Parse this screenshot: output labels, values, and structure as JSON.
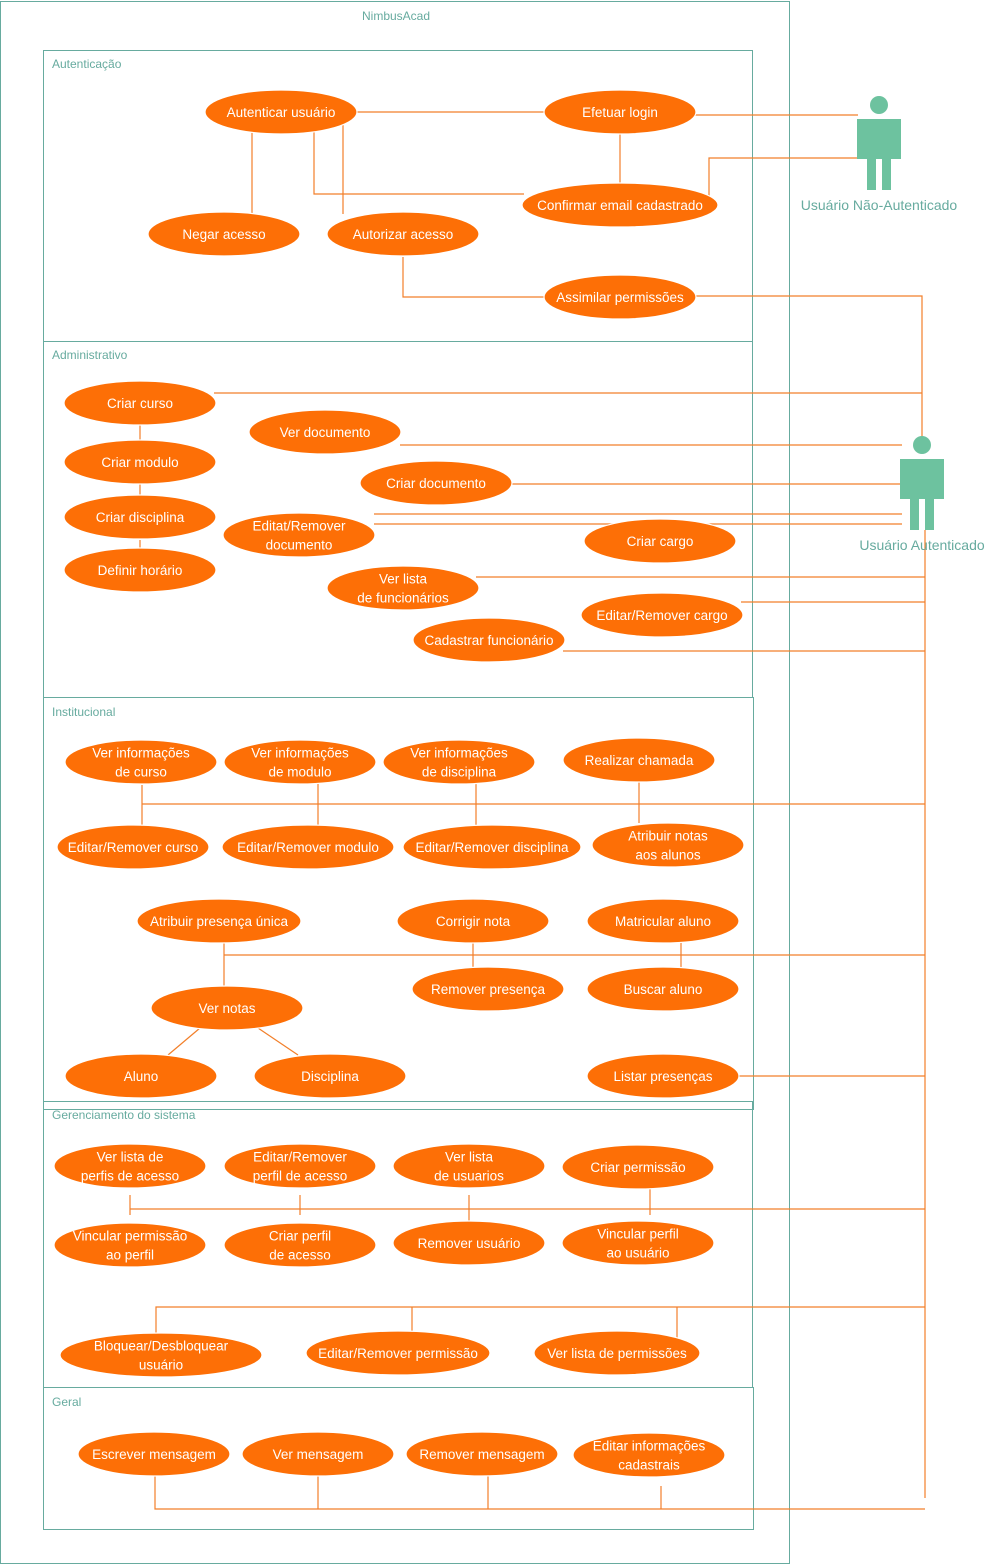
{
  "system": {
    "title": "NimbusAcad"
  },
  "colors": {
    "frame": "#67ab9f",
    "use_case_fill": "#fd6f06",
    "use_case_text": "#ffffff",
    "connector": "#f27f2a",
    "actor": "#6dc29f"
  },
  "packages": {
    "autenticacao": "Autenticação",
    "administrativo": "Administrativo",
    "institucional": "Institucional",
    "gerenciamento": "Gerenciamento do sistema",
    "geral": "Geral"
  },
  "actors": {
    "nao_autenticado": "Usuário Não-Autenticado",
    "autenticado": "Usuário Autenticado"
  },
  "use_cases": {
    "autenticar_usuario": [
      "Autenticar usuário"
    ],
    "efetuar_login": [
      "Efetuar login"
    ],
    "confirmar_email": [
      "Confirmar email cadastrado"
    ],
    "negar_acesso": [
      "Negar acesso"
    ],
    "autorizar_acesso": [
      "Autorizar acesso"
    ],
    "assimilar_permissoes": [
      "Assimilar permissões"
    ],
    "criar_curso": [
      "Criar curso"
    ],
    "criar_modulo": [
      "Criar modulo"
    ],
    "criar_disciplina": [
      "Criar disciplina"
    ],
    "definir_horario": [
      "Definir horário"
    ],
    "ver_documento": [
      "Ver documento"
    ],
    "criar_documento": [
      "Criar documento"
    ],
    "editar_remover_documento": [
      "Editat/Remover",
      "documento"
    ],
    "criar_cargo": [
      "Criar cargo"
    ],
    "ver_lista_funcionarios": [
      "Ver lista",
      "de funcionários"
    ],
    "editar_remover_cargo": [
      "Editar/Remover cargo"
    ],
    "cadastrar_funcionario": [
      "Cadastrar funcionário"
    ],
    "ver_info_curso": [
      "Ver informações",
      "de curso"
    ],
    "ver_info_modulo": [
      "Ver informações",
      "de modulo"
    ],
    "ver_info_disciplina": [
      "Ver informações",
      "de disciplina"
    ],
    "realizar_chamada": [
      "Realizar chamada"
    ],
    "editar_remover_curso": [
      "Editar/Remover curso"
    ],
    "editar_remover_modulo": [
      "Editar/Remover modulo"
    ],
    "editar_remover_disciplina": [
      "Editar/Remover disciplina"
    ],
    "atribuir_notas": [
      "Atribuir notas",
      "aos alunos"
    ],
    "atribuir_presenca": [
      "Atribuir presença única"
    ],
    "corrigir_nota": [
      "Corrigir nota"
    ],
    "matricular_aluno": [
      "Matricular aluno"
    ],
    "remover_presenca": [
      "Remover presença"
    ],
    "buscar_aluno": [
      "Buscar aluno"
    ],
    "ver_notas": [
      "Ver notas"
    ],
    "aluno": [
      "Aluno"
    ],
    "disciplina": [
      "Disciplina"
    ],
    "listar_presencas": [
      "Listar presenças"
    ],
    "ver_lista_perfis": [
      "Ver lista de",
      "perfis de acesso"
    ],
    "editar_remover_perfil": [
      "Editar/Remover",
      "perfil de acesso"
    ],
    "ver_lista_usuarios": [
      "Ver lista",
      "de usuarios"
    ],
    "criar_permissao": [
      "Criar permissão"
    ],
    "vincular_permissao": [
      "Vincular permissão",
      "ao perfil"
    ],
    "criar_perfil": [
      "Criar perfil",
      "de acesso"
    ],
    "remover_usuario": [
      "Remover usuário"
    ],
    "vincular_perfil": [
      "Vincular perfil",
      "ao usuário"
    ],
    "bloquear_usuario": [
      "Bloquear/Desbloquear",
      "usuário"
    ],
    "editar_remover_permissao": [
      "Editar/Remover permissão"
    ],
    "ver_lista_permissoes": [
      "Ver lista de permissões"
    ],
    "escrever_mensagem": [
      "Escrever mensagem"
    ],
    "ver_mensagem": [
      "Ver mensagem"
    ],
    "remover_mensagem": [
      "Remover mensagem"
    ],
    "editar_info_cadastrais": [
      "Editar informações",
      "cadastrais"
    ]
  }
}
